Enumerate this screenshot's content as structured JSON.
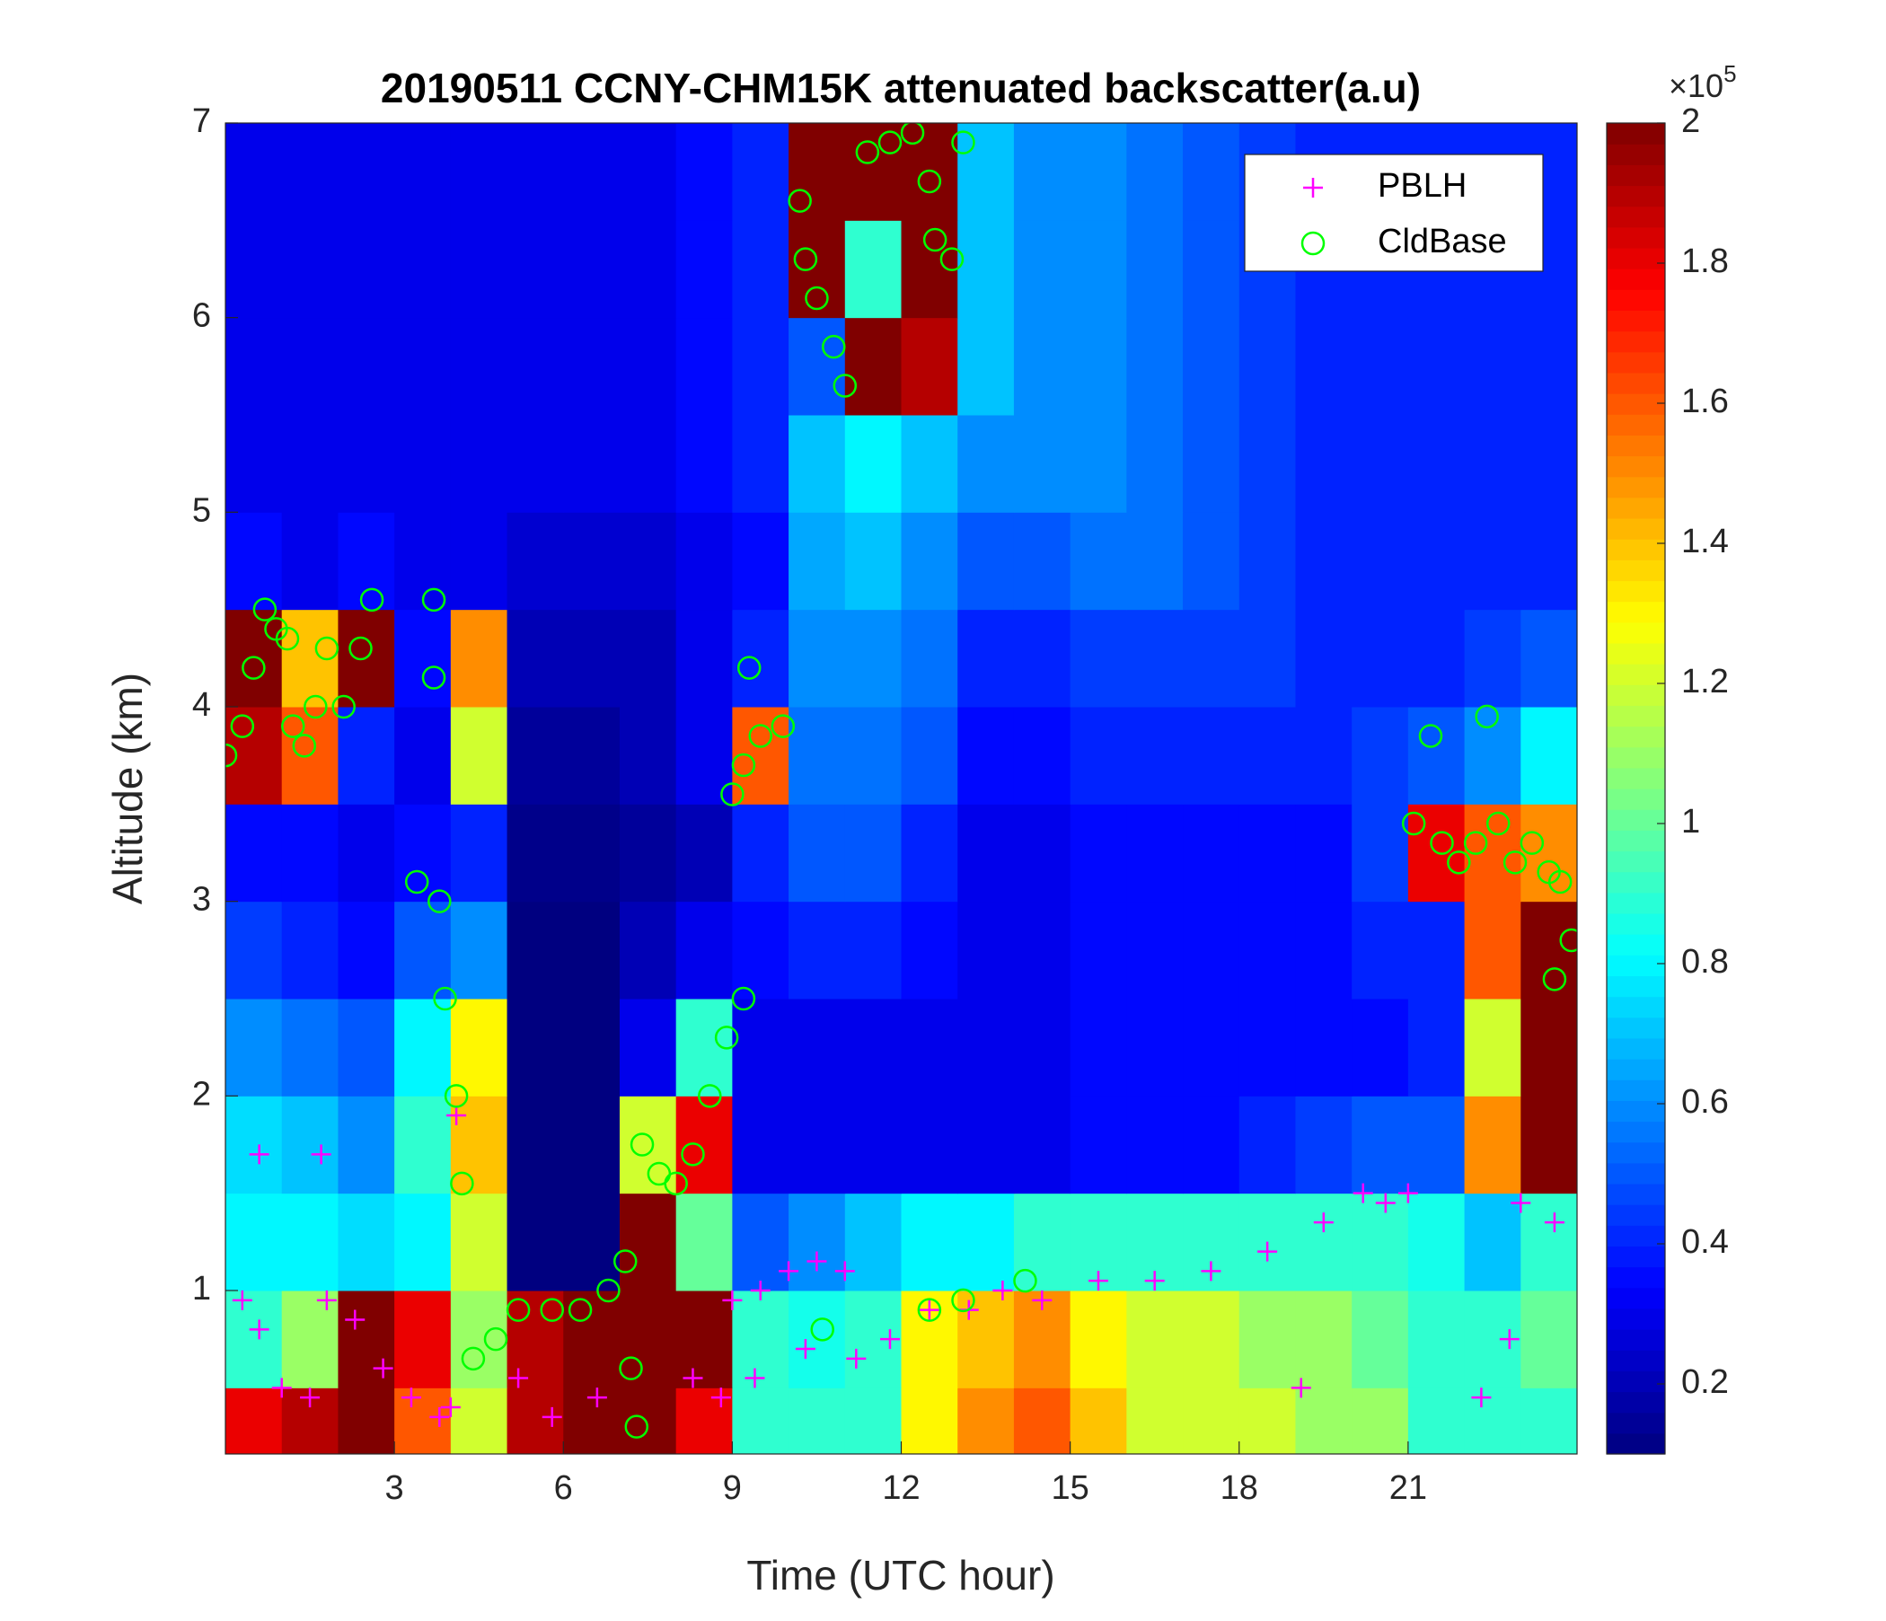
{
  "chart_data": {
    "type": "heatmap",
    "title": "20190511 CCNY-CHM15K attenuated backscatter(a.u)",
    "x_label": "Time (UTC hour)",
    "y_label": "Altitude (km)",
    "xlim": [
      0,
      24
    ],
    "xticks": [
      3,
      6,
      9,
      12,
      15,
      18,
      21
    ],
    "ylim": [
      0.16,
      7
    ],
    "yticks": [
      1,
      2,
      3,
      4,
      5,
      6,
      7
    ],
    "colormap": "jet",
    "clim": [
      0.1,
      2
    ],
    "cticks": [
      0.2,
      0.4,
      0.6,
      0.8,
      1,
      1.2,
      1.4,
      1.6,
      1.8,
      2
    ],
    "colorbar_multiplier": {
      "base": "×10",
      "exponent": "5"
    },
    "x": [
      0.5,
      1.5,
      2.5,
      3.5,
      4.5,
      5.5,
      6.5,
      7.5,
      8.5,
      9.5,
      10.5,
      11.5,
      12.5,
      13.5,
      14.5,
      15.5,
      16.5,
      17.5,
      18.5,
      19.5,
      20.5,
      21.5,
      22.5,
      23.5
    ],
    "y": [
      0.25,
      0.75,
      1.25,
      1.75,
      2.25,
      2.75,
      3.25,
      3.75,
      4.25,
      4.75,
      5.25,
      5.75,
      6.25,
      6.75
    ],
    "z": [
      [
        1.8,
        1.9,
        2,
        1.6,
        1.2,
        1.9,
        2,
        2,
        1.8,
        0.9,
        0.9,
        0.9,
        1.3,
        1.5,
        1.6,
        1.4,
        1.2,
        1.2,
        1.2,
        1.1,
        1.1,
        0.9,
        0.9,
        0.9
      ],
      [
        0.9,
        1.1,
        2,
        1.8,
        1.1,
        1.9,
        2,
        2,
        2,
        0.9,
        0.85,
        0.9,
        1.3,
        1.4,
        1.5,
        1.3,
        1.2,
        1.2,
        1.1,
        1.1,
        1,
        0.9,
        0.9,
        1
      ],
      [
        0.8,
        0.8,
        0.75,
        0.8,
        1.2,
        0.1,
        0.1,
        2,
        1,
        0.5,
        0.6,
        0.7,
        0.8,
        0.8,
        0.9,
        0.9,
        0.9,
        0.9,
        0.9,
        0.9,
        0.9,
        0.85,
        0.7,
        0.9
      ],
      [
        0.75,
        0.7,
        0.6,
        0.9,
        1.4,
        0.1,
        0.1,
        1.2,
        1.8,
        0.3,
        0.3,
        0.3,
        0.3,
        0.3,
        0.3,
        0.35,
        0.35,
        0.35,
        0.4,
        0.45,
        0.5,
        0.5,
        1.5,
        2
      ],
      [
        0.6,
        0.55,
        0.5,
        0.8,
        1.3,
        0.1,
        0.1,
        0.3,
        0.9,
        0.3,
        0.3,
        0.3,
        0.3,
        0.3,
        0.3,
        0.35,
        0.35,
        0.35,
        0.35,
        0.35,
        0.35,
        0.4,
        1.2,
        2
      ],
      [
        0.45,
        0.4,
        0.35,
        0.5,
        0.6,
        0.1,
        0.1,
        0.2,
        0.3,
        0.35,
        0.4,
        0.4,
        0.35,
        0.3,
        0.3,
        0.35,
        0.35,
        0.35,
        0.35,
        0.35,
        0.4,
        0.4,
        1.6,
        2
      ],
      [
        0.35,
        0.35,
        0.3,
        0.35,
        0.4,
        0.12,
        0.12,
        0.15,
        0.2,
        0.4,
        0.5,
        0.5,
        0.4,
        0.3,
        0.3,
        0.35,
        0.35,
        0.35,
        0.35,
        0.35,
        0.45,
        1.8,
        1.6,
        1.5
      ],
      [
        1.9,
        1.6,
        0.4,
        0.3,
        1.2,
        0.15,
        0.15,
        0.2,
        0.3,
        1.6,
        0.55,
        0.55,
        0.5,
        0.35,
        0.35,
        0.4,
        0.4,
        0.4,
        0.4,
        0.4,
        0.45,
        0.5,
        0.6,
        0.8
      ],
      [
        2,
        1.4,
        2,
        0.35,
        1.5,
        0.2,
        0.2,
        0.2,
        0.3,
        0.4,
        0.6,
        0.6,
        0.55,
        0.4,
        0.4,
        0.45,
        0.45,
        0.45,
        0.45,
        0.4,
        0.4,
        0.4,
        0.45,
        0.5
      ],
      [
        0.35,
        0.3,
        0.35,
        0.3,
        0.3,
        0.25,
        0.25,
        0.25,
        0.3,
        0.35,
        0.65,
        0.7,
        0.6,
        0.5,
        0.5,
        0.55,
        0.55,
        0.5,
        0.45,
        0.4,
        0.4,
        0.4,
        0.4,
        0.4
      ],
      [
        0.3,
        0.3,
        0.3,
        0.3,
        0.3,
        0.3,
        0.3,
        0.3,
        0.35,
        0.4,
        0.7,
        0.8,
        0.7,
        0.6,
        0.6,
        0.6,
        0.55,
        0.5,
        0.45,
        0.4,
        0.4,
        0.4,
        0.4,
        0.4
      ],
      [
        0.3,
        0.3,
        0.3,
        0.3,
        0.3,
        0.3,
        0.3,
        0.3,
        0.35,
        0.4,
        0.5,
        2,
        1.9,
        0.7,
        0.6,
        0.6,
        0.55,
        0.5,
        0.45,
        0.4,
        0.4,
        0.4,
        0.4,
        0.4
      ],
      [
        0.3,
        0.3,
        0.3,
        0.3,
        0.3,
        0.3,
        0.3,
        0.3,
        0.35,
        0.4,
        2,
        0.9,
        2,
        0.7,
        0.6,
        0.6,
        0.55,
        0.5,
        0.45,
        0.4,
        0.4,
        0.4,
        0.4,
        0.4
      ],
      [
        0.3,
        0.3,
        0.3,
        0.3,
        0.3,
        0.3,
        0.3,
        0.3,
        0.35,
        0.4,
        2,
        2,
        2,
        0.7,
        0.6,
        0.6,
        0.55,
        0.5,
        0.45,
        0.4,
        0.4,
        0.4,
        0.4,
        0.4
      ]
    ],
    "legend": "upper right",
    "series": [
      {
        "name": "PBLH",
        "type": "scatter",
        "marker": "plus",
        "color": "#ff00ff",
        "x": [
          0.3,
          0.6,
          1,
          1.5,
          1.7,
          0.6,
          1.8,
          2.3,
          2.8,
          3.3,
          3.8,
          4,
          4.1,
          5.2,
          5.8,
          6.6,
          8.3,
          8.8,
          9,
          9.5,
          10,
          10.5,
          11,
          11.2,
          11.8,
          12.5,
          13.2,
          13.8,
          14.5,
          15.5,
          16.5,
          17.5,
          18.5,
          19.5,
          20.2,
          20.6,
          21,
          22.3,
          22.8,
          23,
          23.6,
          19.1,
          9.4,
          10.3
        ],
        "y": [
          0.95,
          0.8,
          0.5,
          0.45,
          1.7,
          1.7,
          0.95,
          0.85,
          0.6,
          0.45,
          0.35,
          0.4,
          1.9,
          0.55,
          0.35,
          0.45,
          0.55,
          0.45,
          0.95,
          1,
          1.1,
          1.15,
          1.1,
          0.65,
          0.75,
          0.9,
          0.9,
          1,
          0.95,
          1.05,
          1.05,
          1.1,
          1.2,
          1.35,
          1.5,
          1.45,
          1.5,
          0.45,
          0.75,
          1.45,
          1.35,
          0.5,
          0.55,
          0.7
        ]
      },
      {
        "name": "CldBase",
        "type": "scatter",
        "marker": "circle",
        "color": "#00ff00",
        "x": [
          0,
          0.3,
          0.5,
          0.7,
          0.9,
          1.1,
          1.2,
          1.4,
          1.6,
          1.8,
          2.1,
          2.4,
          2.6,
          3.4,
          3.8,
          3.7,
          3.7,
          3.9,
          4.1,
          4.2,
          4.4,
          4.8,
          5.2,
          5.8,
          6.3,
          6.8,
          7.1,
          7.2,
          7.3,
          7.4,
          7.7,
          8,
          8.3,
          8.6,
          8.9,
          9.2,
          9.3,
          9,
          9.2,
          9.5,
          9.9,
          10.2,
          10.3,
          10.5,
          10.8,
          11,
          11.4,
          11.8,
          12.2,
          12.5,
          12.6,
          12.9,
          13.1,
          12.5,
          13.1,
          14.2,
          10.6,
          21.1,
          21.4,
          21.6,
          21.9,
          22.2,
          22.4,
          22.6,
          22.9,
          23.2,
          23.5,
          23.7,
          23.6,
          23.9
        ],
        "y": [
          3.75,
          3.9,
          4.2,
          4.5,
          4.4,
          4.35,
          3.9,
          3.8,
          4,
          4.3,
          4,
          4.3,
          4.55,
          3.1,
          3,
          4.55,
          4.15,
          2.5,
          2,
          1.55,
          0.65,
          0.75,
          0.9,
          0.9,
          0.9,
          1,
          1.15,
          0.6,
          0.3,
          1.75,
          1.6,
          1.55,
          1.7,
          2,
          2.3,
          2.5,
          4.2,
          3.55,
          3.7,
          3.85,
          3.9,
          6.6,
          6.3,
          6.1,
          5.85,
          5.65,
          6.85,
          6.9,
          6.95,
          6.7,
          6.4,
          6.3,
          6.9,
          0.9,
          0.95,
          1.05,
          0.8,
          3.4,
          3.85,
          3.3,
          3.2,
          3.3,
          3.95,
          3.4,
          3.2,
          3.3,
          3.15,
          3.1,
          2.6,
          2.8
        ]
      }
    ]
  }
}
